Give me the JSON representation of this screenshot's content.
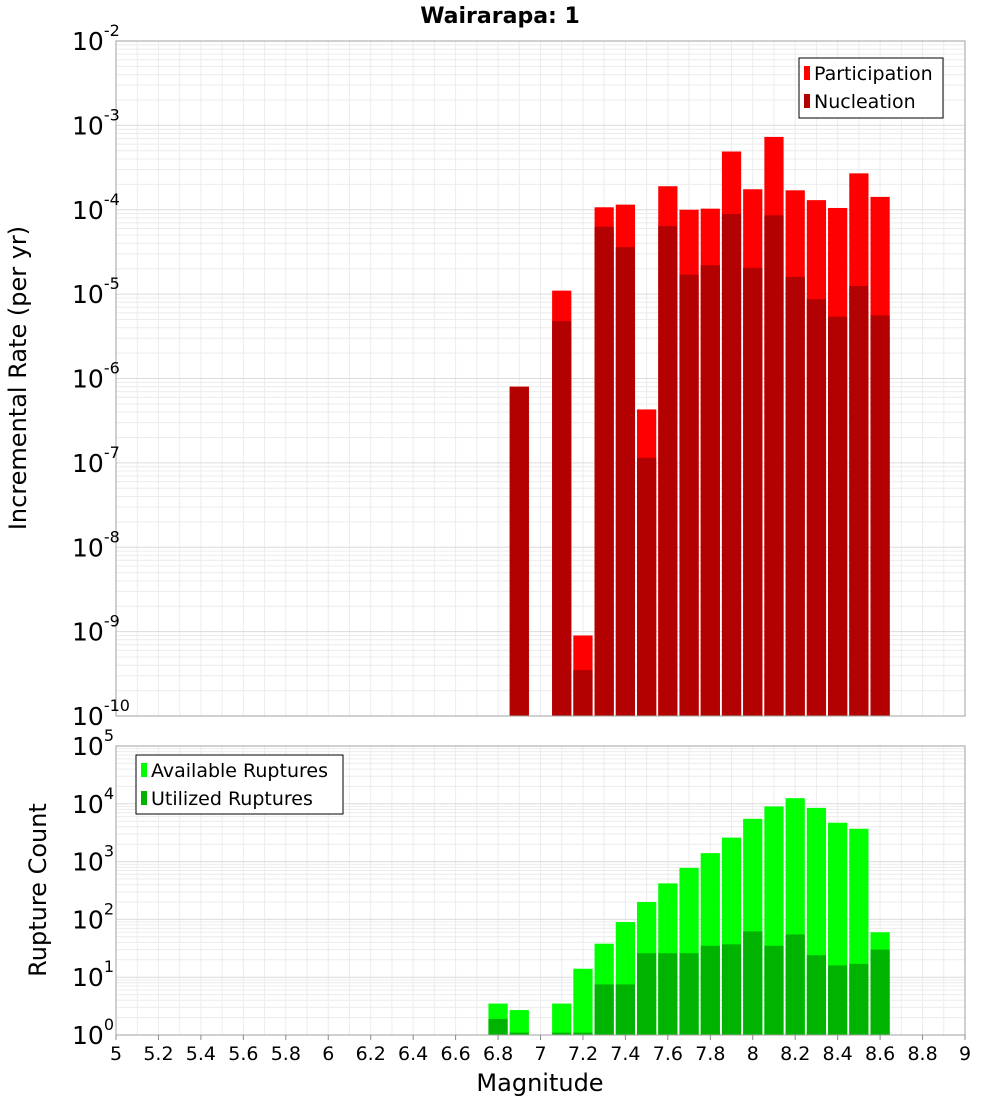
{
  "chart_data": [
    {
      "type": "bar",
      "title": "Wairarapa: 1",
      "xlabel": "",
      "ylabel": "Incremental Rate (per yr)",
      "yscale": "log",
      "xlim": [
        5,
        9
      ],
      "ylim": [
        1e-10,
        0.01
      ],
      "grid": true,
      "legend_position": "top-right",
      "bin_width": 0.1,
      "x": [
        6.9,
        7.1,
        7.2,
        7.3,
        7.4,
        7.5,
        7.6,
        7.7,
        7.8,
        7.9,
        8.0,
        8.1,
        8.2,
        8.3,
        8.4,
        8.5,
        8.6
      ],
      "series": [
        {
          "name": "Participation",
          "color": "#ff0000",
          "values": [
            8e-07,
            1.1e-05,
            9e-10,
            0.000107,
            0.000115,
            4.3e-07,
            0.00019,
            0.0001,
            0.000103,
            0.00049,
            0.000175,
            0.00073,
            0.00017,
            0.00013,
            0.000105,
            0.00027,
            0.000142
          ]
        },
        {
          "name": "Nucleation",
          "color": "#b30000",
          "values": [
            8e-07,
            4.8e-06,
            3.5e-10,
            6.3e-05,
            3.6e-05,
            1.15e-07,
            6.4e-05,
            1.7e-05,
            2.2e-05,
            8.9e-05,
            2.05e-05,
            8.6e-05,
            1.6e-05,
            8.7e-06,
            5.4e-06,
            1.25e-05,
            5.6e-06
          ]
        }
      ]
    },
    {
      "type": "bar",
      "title": "",
      "xlabel": "Magnitude",
      "ylabel": "Rupture Count",
      "yscale": "log",
      "xlim": [
        5,
        9
      ],
      "ylim": [
        1,
        100000
      ],
      "grid": true,
      "legend_position": "top-left",
      "bin_width": 0.1,
      "x": [
        6.8,
        6.9,
        7.1,
        7.2,
        7.3,
        7.4,
        7.5,
        7.6,
        7.7,
        7.8,
        7.9,
        8.0,
        8.1,
        8.2,
        8.3,
        8.4,
        8.5,
        8.6
      ],
      "series": [
        {
          "name": "Available Ruptures",
          "color": "#00ff00",
          "values": [
            3.5,
            2.7,
            3.5,
            14,
            38,
            90,
            200,
            420,
            780,
            1400,
            2600,
            5500,
            9000,
            12500,
            8500,
            4700,
            3700,
            60
          ]
        },
        {
          "name": "Utilized Ruptures",
          "color": "#00b300",
          "values": [
            1.9,
            1.1,
            1.1,
            1.1,
            7.5,
            7.5,
            26,
            26,
            26,
            35,
            37,
            62,
            35,
            55,
            24,
            16,
            17,
            30
          ]
        }
      ]
    }
  ],
  "x_ticks": [
    "5",
    "5.2",
    "5.4",
    "5.6",
    "5.8",
    "6",
    "6.2",
    "6.4",
    "6.6",
    "6.8",
    "7",
    "7.2",
    "7.4",
    "7.6",
    "7.8",
    "8",
    "8.2",
    "8.4",
    "8.6",
    "8.8",
    "9"
  ],
  "top_y_ticks": [
    {
      "base": "10",
      "exp": "-10"
    },
    {
      "base": "10",
      "exp": "-9"
    },
    {
      "base": "10",
      "exp": "-8"
    },
    {
      "base": "10",
      "exp": "-7"
    },
    {
      "base": "10",
      "exp": "-6"
    },
    {
      "base": "10",
      "exp": "-5"
    },
    {
      "base": "10",
      "exp": "-4"
    },
    {
      "base": "10",
      "exp": "-3"
    },
    {
      "base": "10",
      "exp": "-2"
    }
  ],
  "bottom_y_ticks": [
    {
      "base": "10",
      "exp": "0"
    },
    {
      "base": "10",
      "exp": "1"
    },
    {
      "base": "10",
      "exp": "2"
    },
    {
      "base": "10",
      "exp": "3"
    },
    {
      "base": "10",
      "exp": "4"
    },
    {
      "base": "10",
      "exp": "5"
    }
  ]
}
